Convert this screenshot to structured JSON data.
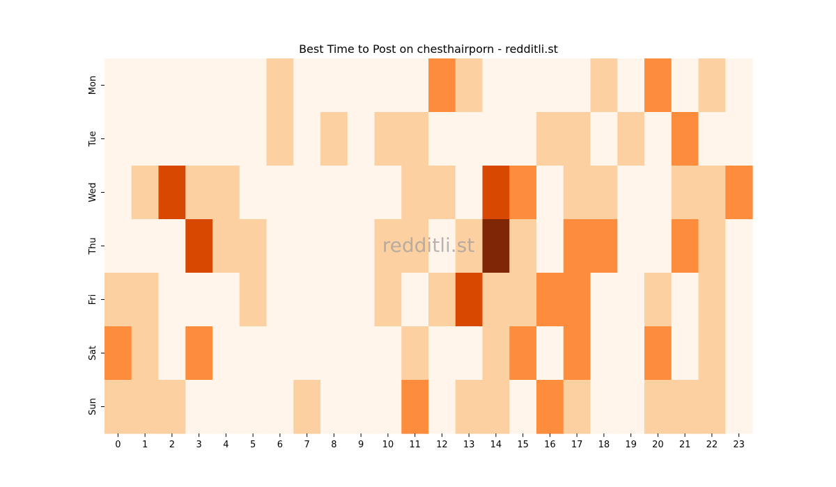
{
  "chart_data": {
    "type": "heatmap",
    "title": "Best Time to Post on chesthairporn - redditli.st",
    "watermark": "redditli.st",
    "xlabel": "",
    "ylabel": "",
    "x_categories": [
      "0",
      "1",
      "2",
      "3",
      "4",
      "5",
      "6",
      "7",
      "8",
      "9",
      "10",
      "11",
      "12",
      "13",
      "14",
      "15",
      "16",
      "17",
      "18",
      "19",
      "20",
      "21",
      "22",
      "23"
    ],
    "y_categories": [
      "Mon",
      "Tue",
      "Wed",
      "Thu",
      "Fri",
      "Sat",
      "Sun"
    ],
    "values": [
      [
        0,
        0,
        0,
        0,
        0,
        0,
        1,
        0,
        0,
        0,
        0,
        0,
        2,
        1,
        0,
        0,
        0,
        0,
        1,
        0,
        2,
        0,
        1,
        0
      ],
      [
        0,
        0,
        0,
        0,
        0,
        0,
        1,
        0,
        1,
        0,
        1,
        1,
        0,
        0,
        0,
        0,
        1,
        1,
        0,
        1,
        0,
        2,
        0,
        0
      ],
      [
        0,
        1,
        3,
        1,
        1,
        0,
        0,
        0,
        0,
        0,
        0,
        1,
        1,
        0,
        3,
        2,
        0,
        1,
        1,
        0,
        0,
        1,
        1,
        2
      ],
      [
        0,
        0,
        0,
        3,
        1,
        1,
        0,
        0,
        0,
        0,
        1,
        1,
        0,
        1,
        4,
        1,
        0,
        2,
        2,
        0,
        0,
        2,
        1,
        0
      ],
      [
        1,
        1,
        0,
        0,
        0,
        1,
        0,
        0,
        0,
        0,
        1,
        0,
        1,
        3,
        1,
        1,
        2,
        2,
        0,
        0,
        1,
        0,
        1,
        0
      ],
      [
        2,
        1,
        0,
        2,
        0,
        0,
        0,
        0,
        0,
        0,
        0,
        1,
        0,
        0,
        1,
        2,
        0,
        2,
        0,
        0,
        2,
        0,
        1,
        0
      ],
      [
        1,
        1,
        1,
        0,
        0,
        0,
        0,
        1,
        0,
        0,
        0,
        2,
        0,
        1,
        1,
        0,
        2,
        1,
        0,
        0,
        1,
        1,
        1,
        0
      ]
    ],
    "colormap": [
      "#fff5eb",
      "#fdd0a2",
      "#fd8d3c",
      "#d94801",
      "#7f2704"
    ],
    "colorbar": false,
    "grid": false
  }
}
